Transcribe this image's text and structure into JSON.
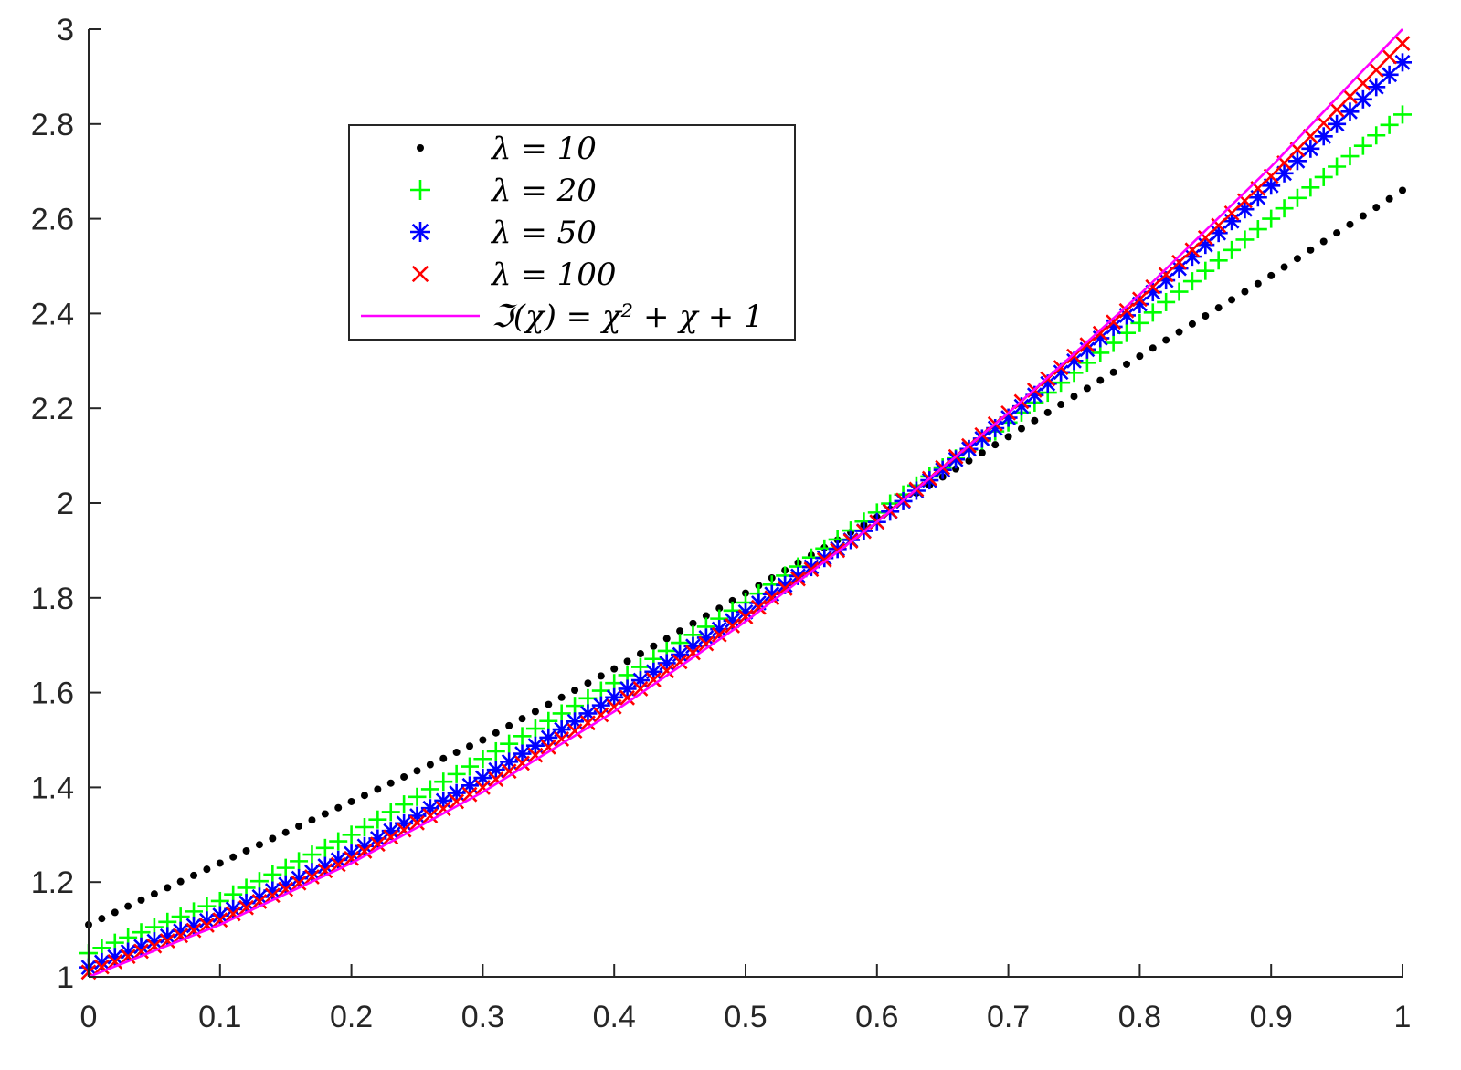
{
  "chart_data": {
    "type": "scatter",
    "xlim": [
      0,
      1
    ],
    "ylim": [
      1,
      3
    ],
    "x_ticks": [
      "0",
      "0.1",
      "0.2",
      "0.3",
      "0.4",
      "0.5",
      "0.6",
      "0.7",
      "0.8",
      "0.9",
      "1"
    ],
    "y_ticks": [
      "1",
      "1.2",
      "1.4",
      "1.6",
      "1.8",
      "2",
      "2.2",
      "2.4",
      "2.6",
      "2.8",
      "3"
    ],
    "grid": false,
    "legend_position": "top-left-center",
    "series": [
      {
        "name": "λ = 10",
        "marker": "dot",
        "color": "#000000",
        "points": [
          [
            0,
            1.11
          ],
          [
            0.1,
            1.24
          ],
          [
            0.2,
            1.37
          ],
          [
            0.3,
            1.5
          ],
          [
            0.4,
            1.65
          ],
          [
            0.5,
            1.81
          ],
          [
            0.6,
            1.97
          ],
          [
            0.7,
            2.14
          ],
          [
            0.8,
            2.31
          ],
          [
            0.9,
            2.48
          ],
          [
            1.0,
            2.66
          ]
        ]
      },
      {
        "name": "λ = 20",
        "marker": "plus",
        "color": "#00ff00",
        "points": [
          [
            0,
            1.05
          ],
          [
            0.1,
            1.16
          ],
          [
            0.2,
            1.3
          ],
          [
            0.3,
            1.46
          ],
          [
            0.4,
            1.62
          ],
          [
            0.5,
            1.79
          ],
          [
            0.6,
            1.98
          ],
          [
            0.7,
            2.17
          ],
          [
            0.8,
            2.38
          ],
          [
            0.9,
            2.6
          ],
          [
            1.0,
            2.82
          ]
        ]
      },
      {
        "name": "λ = 50",
        "marker": "asterisk",
        "color": "#0000ff",
        "points": [
          [
            0,
            1.02
          ],
          [
            0.1,
            1.13
          ],
          [
            0.2,
            1.26
          ],
          [
            0.3,
            1.42
          ],
          [
            0.4,
            1.59
          ],
          [
            0.5,
            1.77
          ],
          [
            0.6,
            1.96
          ],
          [
            0.7,
            2.18
          ],
          [
            0.8,
            2.42
          ],
          [
            0.9,
            2.67
          ],
          [
            1.0,
            2.93
          ]
        ]
      },
      {
        "name": "λ = 100",
        "marker": "x",
        "color": "#ff0000",
        "points": [
          [
            0,
            1.01
          ],
          [
            0.1,
            1.12
          ],
          [
            0.2,
            1.25
          ],
          [
            0.3,
            1.4
          ],
          [
            0.4,
            1.57
          ],
          [
            0.5,
            1.76
          ],
          [
            0.6,
            1.96
          ],
          [
            0.7,
            2.19
          ],
          [
            0.8,
            2.43
          ],
          [
            0.9,
            2.69
          ],
          [
            1.0,
            2.97
          ]
        ]
      },
      {
        "name": "ℑ(χ) = χ² + χ + 1",
        "marker": "line",
        "color": "#ff00ff",
        "points": [
          [
            0,
            1.0
          ],
          [
            0.1,
            1.11
          ],
          [
            0.2,
            1.24
          ],
          [
            0.3,
            1.39
          ],
          [
            0.4,
            1.56
          ],
          [
            0.5,
            1.75
          ],
          [
            0.6,
            1.96
          ],
          [
            0.7,
            2.19
          ],
          [
            0.8,
            2.44
          ],
          [
            0.9,
            2.71
          ],
          [
            1.0,
            3.0
          ]
        ]
      }
    ]
  }
}
